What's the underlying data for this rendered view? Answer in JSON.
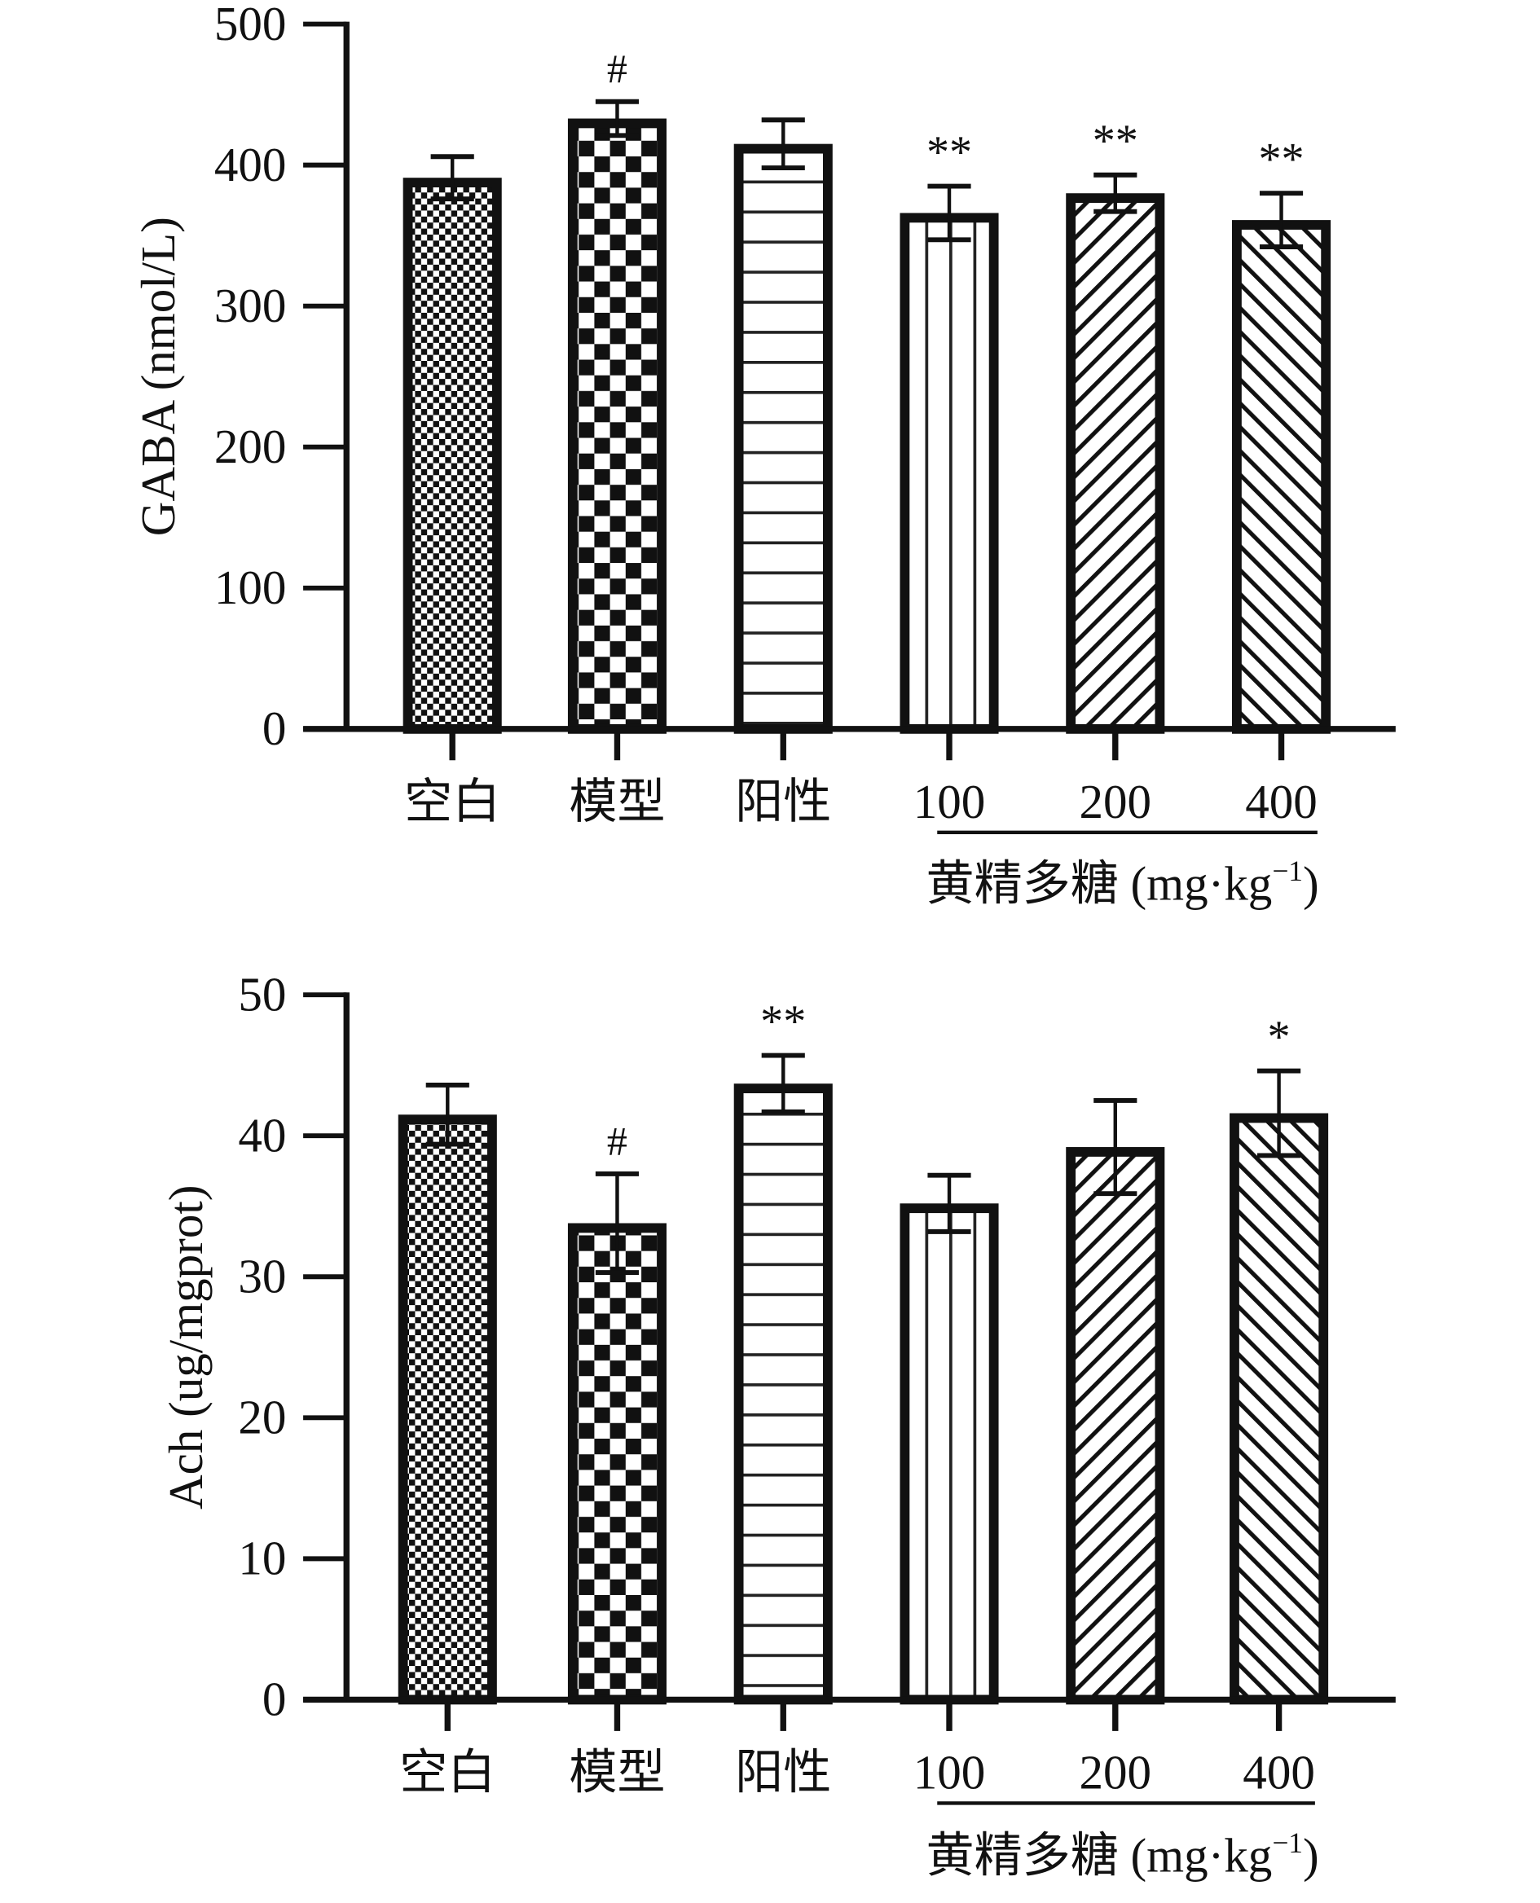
{
  "chart_data": [
    {
      "type": "bar",
      "title": "",
      "ylabel": "GABA (nmol/L)",
      "xlabel": "黄精多糖 (mg·kg⁻¹)",
      "xlabel_parts": {
        "main": "黄精多糖 (mg·kg",
        "sup": "−1",
        "tail": ")"
      },
      "ylim": [
        0,
        500
      ],
      "yticks": [
        0,
        100,
        200,
        300,
        400,
        500
      ],
      "categories": [
        "空白",
        "模型",
        "阳性",
        "100",
        "200",
        "400"
      ],
      "values": [
        391,
        433,
        415,
        366,
        380,
        361
      ],
      "errors": [
        15,
        12,
        17,
        19,
        13,
        19
      ],
      "annotations": [
        "",
        "#",
        "",
        "**",
        "**",
        "**"
      ],
      "patterns": [
        "checker-small",
        "checker-large",
        "horizontal",
        "vertical",
        "diag-right",
        "diag-left"
      ],
      "bracket_group": [
        3,
        5
      ]
    },
    {
      "type": "bar",
      "title": "",
      "ylabel": "Ach (ug/mgprot)",
      "xlabel": "黄精多糖 (mg·kg⁻¹)",
      "xlabel_parts": {
        "main": "黄精多糖 (mg·kg",
        "sup": "−1",
        "tail": ")"
      },
      "ylim": [
        0,
        50
      ],
      "yticks": [
        0,
        10,
        20,
        30,
        40,
        50
      ],
      "categories": [
        "空白",
        "模型",
        "阳性",
        "100",
        "200",
        "400"
      ],
      "values": [
        41.5,
        33.8,
        43.7,
        35.2,
        39.2,
        41.6
      ],
      "errors": [
        2.1,
        3.5,
        2.0,
        2.0,
        3.3,
        3.0
      ],
      "annotations": [
        "",
        "#",
        "**",
        "",
        "",
        "*"
      ],
      "patterns": [
        "checker-small",
        "checker-large",
        "horizontal",
        "vertical",
        "diag-right",
        "diag-left"
      ],
      "bracket_group": [
        3,
        5
      ]
    }
  ]
}
